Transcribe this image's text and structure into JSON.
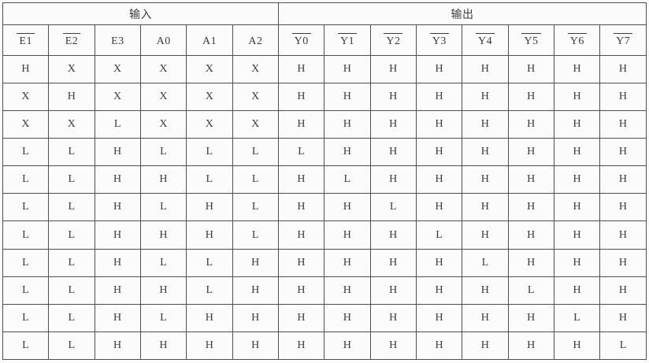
{
  "table": {
    "group_headers": [
      {
        "label": "输入",
        "colspan": 6
      },
      {
        "label": "输出",
        "colspan": 8
      }
    ],
    "columns": [
      {
        "label": "E1",
        "overline": true
      },
      {
        "label": "E2",
        "overline": true
      },
      {
        "label": "E3",
        "overline": false
      },
      {
        "label": "A0",
        "overline": false
      },
      {
        "label": "A1",
        "overline": false
      },
      {
        "label": "A2",
        "overline": false
      },
      {
        "label": "Y0",
        "overline": true
      },
      {
        "label": "Y1",
        "overline": true
      },
      {
        "label": "Y2",
        "overline": true
      },
      {
        "label": "Y3",
        "overline": true
      },
      {
        "label": "Y4",
        "overline": true
      },
      {
        "label": "Y5",
        "overline": true
      },
      {
        "label": "Y6",
        "overline": true
      },
      {
        "label": "Y7",
        "overline": true
      }
    ],
    "rows": [
      [
        "H",
        "X",
        "X",
        "X",
        "X",
        "X",
        "H",
        "H",
        "H",
        "H",
        "H",
        "H",
        "H",
        "H"
      ],
      [
        "X",
        "H",
        "X",
        "X",
        "X",
        "X",
        "H",
        "H",
        "H",
        "H",
        "H",
        "H",
        "H",
        "H"
      ],
      [
        "X",
        "X",
        "L",
        "X",
        "X",
        "X",
        "H",
        "H",
        "H",
        "H",
        "H",
        "H",
        "H",
        "H"
      ],
      [
        "L",
        "L",
        "H",
        "L",
        "L",
        "L",
        "L",
        "H",
        "H",
        "H",
        "H",
        "H",
        "H",
        "H"
      ],
      [
        "L",
        "L",
        "H",
        "H",
        "L",
        "L",
        "H",
        "L",
        "H",
        "H",
        "H",
        "H",
        "H",
        "H"
      ],
      [
        "L",
        "L",
        "H",
        "L",
        "H",
        "L",
        "H",
        "H",
        "L",
        "H",
        "H",
        "H",
        "H",
        "H"
      ],
      [
        "L",
        "L",
        "H",
        "H",
        "H",
        "L",
        "H",
        "H",
        "H",
        "L",
        "H",
        "H",
        "H",
        "H"
      ],
      [
        "L",
        "L",
        "H",
        "L",
        "L",
        "H",
        "H",
        "H",
        "H",
        "H",
        "L",
        "H",
        "H",
        "H"
      ],
      [
        "L",
        "L",
        "H",
        "H",
        "L",
        "H",
        "H",
        "H",
        "H",
        "H",
        "H",
        "L",
        "H",
        "H"
      ],
      [
        "L",
        "L",
        "H",
        "L",
        "H",
        "H",
        "H",
        "H",
        "H",
        "H",
        "H",
        "H",
        "L",
        "H"
      ],
      [
        "L",
        "L",
        "H",
        "H",
        "H",
        "H",
        "H",
        "H",
        "H",
        "H",
        "H",
        "H",
        "H",
        "L"
      ]
    ]
  },
  "colors": {
    "border": "#4f4f4f",
    "text": "#3c3c3c",
    "background": "#fbfbfb"
  }
}
